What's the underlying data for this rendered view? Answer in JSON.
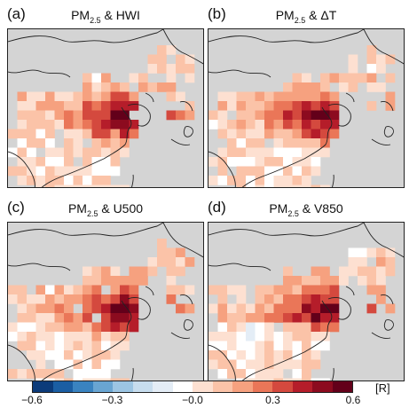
{
  "panels": [
    {
      "id": "a",
      "letter": "(a)",
      "var": "PM",
      "sub": "2.5",
      "partner": " & HWI",
      "pattern": 0
    },
    {
      "id": "b",
      "letter": "(b)",
      "var": "PM",
      "sub": "2.5",
      "partner": " & ΔT",
      "pattern": 1
    },
    {
      "id": "c",
      "letter": "(c)",
      "var": "PM",
      "sub": "2.5",
      "partner": " & U500",
      "pattern": 2
    },
    {
      "id": "d",
      "letter": "(d)",
      "var": "PM",
      "sub": "2.5",
      "partner": " & V850",
      "pattern": 3
    }
  ],
  "colorbar": {
    "unit": "[R]",
    "ticks": [
      "−0.6",
      "−0.3",
      "−0.0",
      "0.3",
      "0.6"
    ],
    "tick_values": [
      -0.6,
      -0.3,
      0.0,
      0.3,
      0.6
    ],
    "range": [
      -0.6,
      0.6
    ],
    "colors": [
      "#0c3b7a",
      "#1b5ea3",
      "#3a83c0",
      "#69a5d2",
      "#9cc5e3",
      "#c7ddee",
      "#e4edf6",
      "#ffffff",
      "#fde0d1",
      "#fbc3a8",
      "#f6a17f",
      "#ea7658",
      "#d4493e",
      "#b51d2a",
      "#8c0b1f",
      "#63001a"
    ]
  },
  "map_colors": {
    "land": "#d4d4d4",
    "coast": "#222222"
  }
}
